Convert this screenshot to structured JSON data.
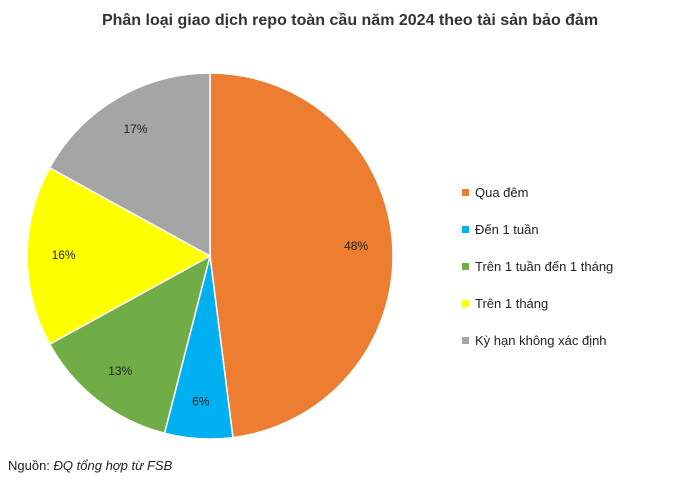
{
  "chart_data": {
    "type": "pie",
    "title": "Phân loại giao dịch repo toàn cầu năm 2024 theo tài sản bảo đảm",
    "categories": [
      "Qua đêm",
      "Đến 1 tuần",
      "Trên 1 tuần đến 1 tháng",
      "Trên 1 tháng",
      "Kỳ hạn không xác định"
    ],
    "values": [
      48,
      6,
      13,
      16,
      17
    ],
    "labels": [
      "48%",
      "6%",
      "13%",
      "16%",
      "17%"
    ],
    "colors": [
      "#ED7D31",
      "#00B0F0",
      "#70AD47",
      "#FFFF00",
      "#A5A5A5"
    ],
    "legend_position": "right"
  },
  "source": {
    "label": "Nguồn:",
    "text": "ĐQ tổng hợp từ FSB"
  }
}
